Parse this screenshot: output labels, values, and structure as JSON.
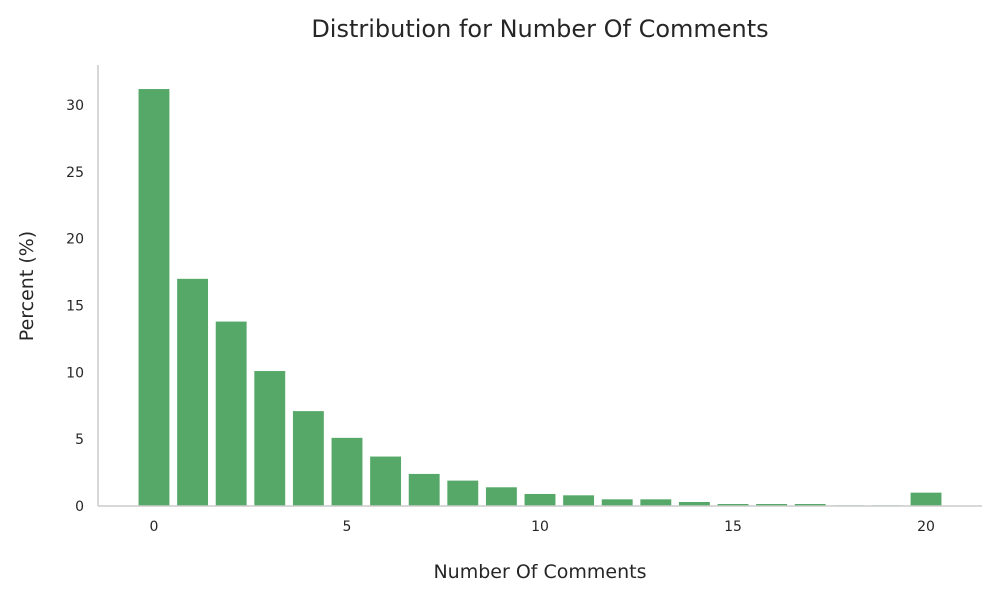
{
  "chart_data": {
    "type": "bar",
    "title": "Distribution for Number Of Comments",
    "xlabel": "Number Of Comments",
    "ylabel": "Percent (%)",
    "x": [
      0,
      1,
      2,
      3,
      4,
      5,
      6,
      7,
      8,
      9,
      10,
      11,
      12,
      13,
      14,
      15,
      16,
      17,
      18,
      19,
      20
    ],
    "values": [
      31.2,
      17.0,
      13.8,
      10.1,
      7.1,
      5.1,
      3.7,
      2.4,
      1.9,
      1.4,
      0.9,
      0.8,
      0.5,
      0.5,
      0.3,
      0.15,
      0.15,
      0.15,
      0.05,
      0.05,
      1.0
    ],
    "xticks": [
      0,
      5,
      10,
      15,
      20
    ],
    "yticks": [
      0,
      5,
      10,
      15,
      20,
      25,
      30
    ],
    "xlim": [
      -1.45,
      21.45
    ],
    "ylim": [
      0,
      33
    ],
    "bar_color": "#55a868",
    "grid": false,
    "legend": "none"
  }
}
